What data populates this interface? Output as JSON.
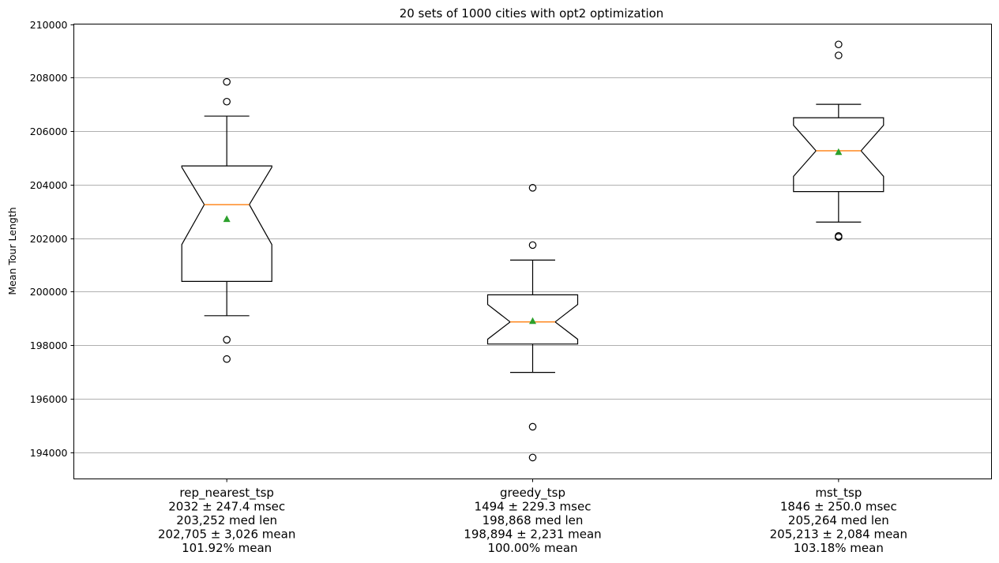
{
  "chart_data": {
    "type": "box",
    "title": "20 sets of 1000 cities with opt2 optimization",
    "xlabel": "",
    "ylabel": "Mean Tour Length",
    "ylim": [
      193000,
      210000
    ],
    "y_ticks": [
      194000,
      196000,
      198000,
      200000,
      202000,
      204000,
      206000,
      208000,
      210000
    ],
    "grid": "horizontal",
    "colors": {
      "box": "#000000",
      "median": "#ff7f0e",
      "mean_marker": "#2ca02c",
      "grid": "#b0b0b0"
    },
    "categories": [
      {
        "name": "rep_nearest_tsp",
        "label_lines": [
          "rep_nearest_tsp",
          "2032 ± 247.4 msec",
          "203,252 med len",
          "202,705 ± 3,026 mean",
          "101.92% mean"
        ],
        "whisker_low": 199100,
        "q1": 200380,
        "notch_low": 201760,
        "median": 203252,
        "notch_high": 204650,
        "q3": 204700,
        "whisker_high": 206560,
        "mean": 202705,
        "outliers": [
          197480,
          198200,
          207100,
          207840
        ]
      },
      {
        "name": "greedy_tsp",
        "label_lines": [
          "greedy_tsp",
          "1494 ± 229.3 msec",
          "198,868 med len",
          "198,894 ± 2,231 mean",
          "100.00% mean"
        ],
        "whisker_low": 196980,
        "q1": 198040,
        "notch_low": 198220,
        "median": 198868,
        "notch_high": 199520,
        "q3": 199880,
        "whisker_high": 201180,
        "mean": 198894,
        "outliers": [
          193800,
          194950,
          201740,
          203880
        ]
      },
      {
        "name": "mst_tsp",
        "label_lines": [
          "mst_tsp",
          "1846 ± 250.0 msec",
          "205,264 med len",
          "205,213 ± 2,084 mean",
          "103.18% mean"
        ],
        "whisker_low": 202600,
        "q1": 203740,
        "notch_low": 204310,
        "median": 205264,
        "notch_high": 206220,
        "q3": 206500,
        "whisker_high": 207000,
        "mean": 205213,
        "outliers": [
          202040,
          202080,
          208830,
          209240
        ]
      }
    ]
  }
}
